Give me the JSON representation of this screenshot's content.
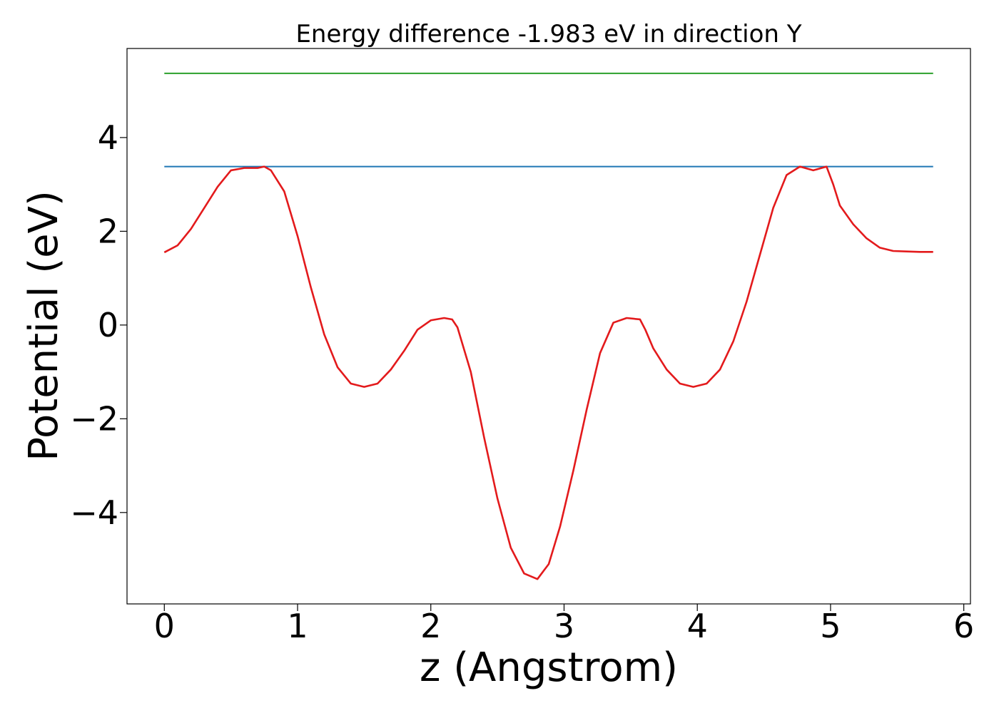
{
  "chart_data": {
    "type": "line",
    "title": "Energy difference -1.983 eV in direction Y",
    "xlabel": "z (Angstrom)",
    "ylabel": "Potential (eV)",
    "xlim": [
      -0.28,
      6.05
    ],
    "ylim": [
      -5.95,
      5.9
    ],
    "xticks": [
      0,
      1,
      2,
      3,
      4,
      5,
      6
    ],
    "xtick_labels": [
      "0",
      "1",
      "2",
      "3",
      "4",
      "5",
      "6"
    ],
    "yticks": [
      -4,
      -2,
      0,
      2,
      4
    ],
    "ytick_labels": [
      "−4",
      "−2",
      "0",
      "2",
      "4"
    ],
    "grid": false,
    "legend": "none",
    "series": [
      {
        "color": "#2ca02c",
        "style": "horizontal",
        "x": [
          0,
          5.77
        ],
        "y": [
          5.37,
          5.37
        ]
      },
      {
        "color": "#1f77b4",
        "style": "horizontal",
        "x": [
          0,
          5.77
        ],
        "y": [
          3.38,
          3.38
        ]
      },
      {
        "color": "#e31a1c",
        "style": "curve",
        "x": [
          0,
          0.1,
          0.2,
          0.3,
          0.4,
          0.5,
          0.6,
          0.7,
          0.75,
          0.8,
          0.9,
          1.0,
          1.1,
          1.2,
          1.3,
          1.4,
          1.5,
          1.6,
          1.7,
          1.8,
          1.9,
          2.0,
          2.1,
          2.16,
          2.2,
          2.3,
          2.4,
          2.5,
          2.6,
          2.7,
          2.8,
          2.885,
          2.97,
          3.07,
          3.17,
          3.27,
          3.37,
          3.47,
          3.57,
          3.61,
          3.67,
          3.77,
          3.87,
          3.97,
          4.07,
          4.17,
          4.27,
          4.37,
          4.47,
          4.57,
          4.67,
          4.77,
          4.87,
          4.97,
          5.02,
          5.07,
          5.17,
          5.27,
          5.37,
          5.47,
          5.57,
          5.67,
          5.77
        ],
        "y": [
          1.55,
          1.7,
          2.05,
          2.5,
          2.95,
          3.3,
          3.35,
          3.35,
          3.38,
          3.3,
          2.85,
          1.9,
          0.8,
          -0.2,
          -0.9,
          -1.25,
          -1.32,
          -1.25,
          -0.95,
          -0.55,
          -0.1,
          0.1,
          0.15,
          0.12,
          -0.05,
          -1.0,
          -2.4,
          -3.7,
          -4.75,
          -5.3,
          -5.42,
          -5.1,
          -4.3,
          -3.1,
          -1.8,
          -0.6,
          0.05,
          0.15,
          0.12,
          -0.1,
          -0.5,
          -0.95,
          -1.25,
          -1.32,
          -1.25,
          -0.95,
          -0.35,
          0.5,
          1.5,
          2.5,
          3.2,
          3.38,
          3.3,
          3.38,
          3.0,
          2.55,
          2.15,
          1.85,
          1.65,
          1.58,
          1.57,
          1.56,
          1.56
        ]
      }
    ]
  }
}
